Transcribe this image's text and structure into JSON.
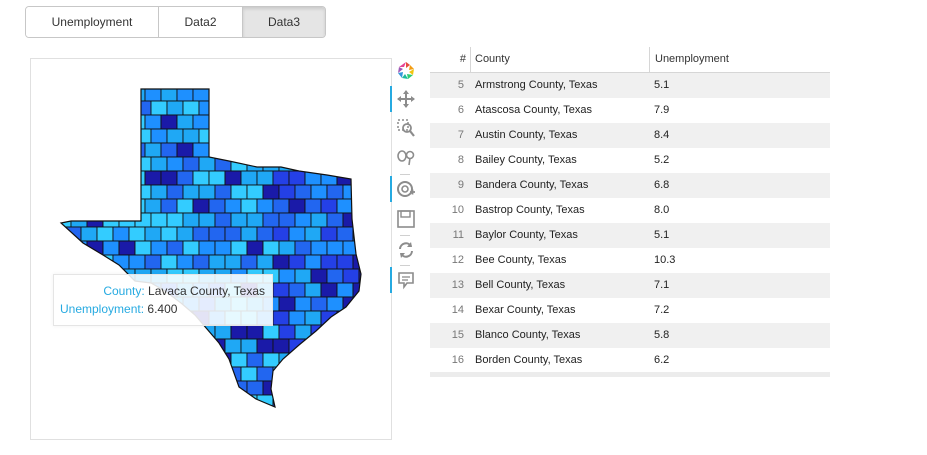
{
  "tabs": [
    {
      "label": "Unemployment",
      "active": false
    },
    {
      "label": "Data2",
      "active": false
    },
    {
      "label": "Data3",
      "active": true
    }
  ],
  "tooltip": {
    "county_key": "County:",
    "county_value": "Lavaca County, Texas",
    "unemployment_key": "Unemployment:",
    "unemployment_value": "6.400"
  },
  "toolbar": {
    "items": [
      {
        "name": "bokeh-logo-icon",
        "active": false
      },
      {
        "name": "pan-icon",
        "active": true
      },
      {
        "name": "box-zoom-icon",
        "active": false
      },
      {
        "name": "lasso-select-icon",
        "active": false
      },
      {
        "name": "wheel-zoom-icon",
        "active": true
      },
      {
        "name": "save-icon",
        "active": false
      },
      {
        "name": "reset-icon",
        "active": false
      },
      {
        "name": "hover-icon",
        "active": true
      }
    ]
  },
  "table": {
    "columns": {
      "index": "#",
      "county": "County",
      "value": "Unemployment"
    },
    "rows": [
      {
        "idx": "5",
        "county": "Armstrong County, Texas",
        "value": "5.1"
      },
      {
        "idx": "6",
        "county": "Atascosa County, Texas",
        "value": "7.9"
      },
      {
        "idx": "7",
        "county": "Austin County, Texas",
        "value": "8.4"
      },
      {
        "idx": "8",
        "county": "Bailey County, Texas",
        "value": "5.2"
      },
      {
        "idx": "9",
        "county": "Bandera County, Texas",
        "value": "6.8"
      },
      {
        "idx": "10",
        "county": "Bastrop County, Texas",
        "value": "8.0"
      },
      {
        "idx": "11",
        "county": "Baylor County, Texas",
        "value": "5.1"
      },
      {
        "idx": "12",
        "county": "Bee County, Texas",
        "value": "10.3"
      },
      {
        "idx": "13",
        "county": "Bell County, Texas",
        "value": "7.1"
      },
      {
        "idx": "14",
        "county": "Bexar County, Texas",
        "value": "7.2"
      },
      {
        "idx": "15",
        "county": "Blanco County, Texas",
        "value": "5.8"
      },
      {
        "idx": "16",
        "county": "Borden County, Texas",
        "value": "6.2"
      }
    ]
  },
  "colors": {
    "accent": "#26aae1",
    "palette": [
      "#33ccff",
      "#1fa8f5",
      "#1e90ff",
      "#2266f0",
      "#2440e6",
      "#1a1aa8",
      "#0a0a66"
    ]
  }
}
